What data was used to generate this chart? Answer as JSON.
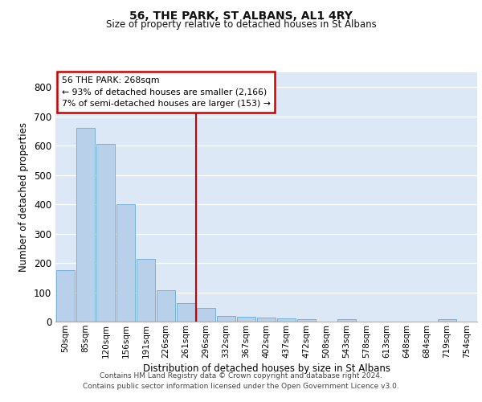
{
  "title": "56, THE PARK, ST ALBANS, AL1 4RY",
  "subtitle": "Size of property relative to detached houses in St Albans",
  "xlabel": "Distribution of detached houses by size in St Albans",
  "ylabel": "Number of detached properties",
  "categories": [
    "50sqm",
    "85sqm",
    "120sqm",
    "156sqm",
    "191sqm",
    "226sqm",
    "261sqm",
    "296sqm",
    "332sqm",
    "367sqm",
    "402sqm",
    "437sqm",
    "472sqm",
    "508sqm",
    "543sqm",
    "578sqm",
    "613sqm",
    "648sqm",
    "684sqm",
    "719sqm",
    "754sqm"
  ],
  "values": [
    175,
    660,
    605,
    400,
    215,
    108,
    63,
    46,
    20,
    17,
    15,
    12,
    7,
    0,
    7,
    0,
    0,
    0,
    0,
    7,
    0
  ],
  "bar_color": "#b8d0ea",
  "bar_edge_color": "#6aaad4",
  "vline_color": "#cc0000",
  "vline_index": 6,
  "annotation_line1": "56 THE PARK: 268sqm",
  "annotation_line2": "← 93% of detached houses are smaller (2,166)",
  "annotation_line3": "7% of semi-detached houses are larger (153) →",
  "annotation_box_facecolor": "#ffffff",
  "annotation_box_edgecolor": "#cc0000",
  "background_color": "#dce8f5",
  "ylim": [
    0,
    850
  ],
  "yticks": [
    0,
    100,
    200,
    300,
    400,
    500,
    600,
    700,
    800
  ],
  "footer_line1": "Contains HM Land Registry data © Crown copyright and database right 2024.",
  "footer_line2": "Contains public sector information licensed under the Open Government Licence v3.0."
}
